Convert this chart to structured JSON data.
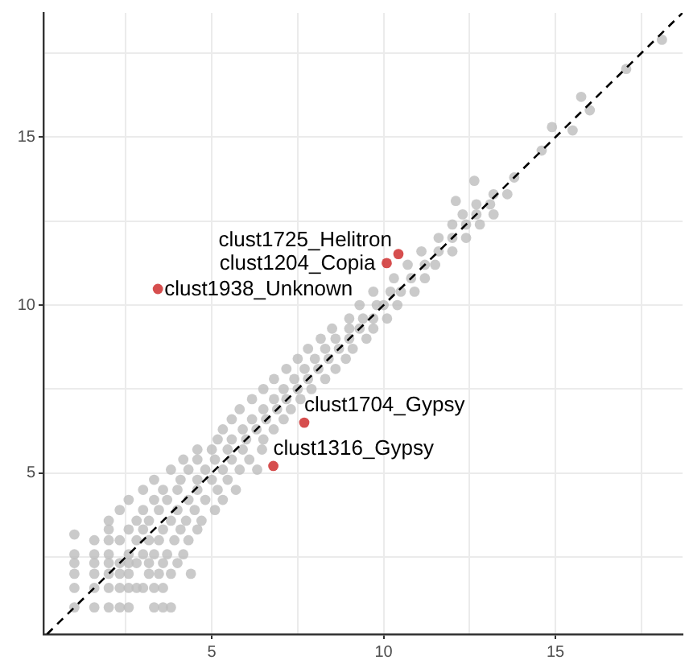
{
  "chart_data": {
    "type": "scatter",
    "xlim": [
      0.1,
      18.7
    ],
    "ylim": [
      0.2,
      18.7
    ],
    "xticks": [
      {
        "value": 2.5,
        "label": null
      },
      5,
      {
        "value": 7.5,
        "label": null
      },
      10,
      {
        "value": 12.5,
        "label": null
      },
      15,
      {
        "value": 17.5,
        "label": null
      }
    ],
    "yticks": [
      {
        "value": 2.5,
        "label": null
      },
      5,
      {
        "value": 7.5,
        "label": null
      },
      10,
      {
        "value": 12.5,
        "label": null
      },
      15,
      {
        "value": 17.5,
        "label": null
      }
    ],
    "grid": true,
    "legend": false,
    "marker": "circle",
    "series": [
      {
        "color": "#bdbdbd",
        "x": [
          1,
          1.58,
          2,
          2.32,
          2.58,
          3.32,
          3.58,
          3.81,
          1,
          1.58,
          2,
          2.32,
          2.58,
          2.81,
          3,
          3.32,
          3.58,
          1,
          1.58,
          2,
          2.32,
          2.58,
          3.17,
          3.46,
          3.81,
          4.39,
          1,
          1.58,
          2,
          2.32,
          2.58,
          2.81,
          3.17,
          3.58,
          4,
          1,
          1.58,
          2,
          2.58,
          3,
          3.32,
          3.7,
          4.17,
          1.58,
          2,
          2.32,
          2.81,
          3.17,
          3.46,
          3.91,
          4.32,
          1,
          2,
          2.58,
          3,
          3.58,
          4.09,
          4.58,
          2,
          2.81,
          3.17,
          3.81,
          4.25,
          4.7,
          2.32,
          3,
          3.46,
          4,
          4.5,
          5.09,
          2.58,
          3.32,
          3.7,
          4.32,
          4.81,
          5.32,
          3,
          3.58,
          4,
          4.58,
          5.17,
          5.7,
          3.32,
          4.09,
          4.58,
          5,
          5.46,
          3.81,
          4.32,
          4.81,
          5.32,
          5.81,
          6.32,
          4.17,
          4.58,
          5.09,
          5.58,
          6.09,
          4.58,
          5,
          5.46,
          5.9,
          6.46,
          5.17,
          5.58,
          6,
          6.5,
          5.32,
          5.9,
          6.3,
          6.8,
          5.58,
          6.17,
          6.58,
          7.09,
          5.81,
          6.5,
          6.9,
          7.3,
          6.17,
          6.81,
          7.17,
          7.58,
          6.5,
          7.09,
          7.5,
          7.9,
          6.81,
          7.4,
          7.8,
          8.3,
          7.17,
          7.7,
          8.1,
          8.6,
          7.5,
          8,
          8.4,
          8.9,
          7.8,
          8.3,
          8.7,
          9.1,
          8.17,
          8.6,
          9,
          9.5,
          8.5,
          9,
          9.3,
          9.7,
          9,
          9.4,
          9.7,
          10.1,
          9.3,
          9.8,
          10,
          10.4,
          9.7,
          10.2,
          10.5,
          10.9,
          10.3,
          10.8,
          11.2,
          10.7,
          11.2,
          11.5,
          11.1,
          11.6,
          12,
          11.6,
          12,
          12.4,
          12,
          12.4,
          12.8,
          12.3,
          12.7,
          13.2,
          12.7,
          13.1,
          13.2,
          13.6,
          12.64,
          12.1,
          13.8,
          14.6,
          14.9,
          15.5,
          15.75,
          16,
          17.06,
          18.1
        ],
        "values": [
          1,
          1,
          1,
          1,
          1,
          1,
          1,
          1,
          1.58,
          1.58,
          1.58,
          1.58,
          1.58,
          1.58,
          1.58,
          1.58,
          1.58,
          2,
          2,
          2,
          2,
          2,
          2,
          2,
          2,
          2,
          2.32,
          2.32,
          2.32,
          2.32,
          2.32,
          2.32,
          2.32,
          2.32,
          2.32,
          2.58,
          2.58,
          2.58,
          2.58,
          2.58,
          2.58,
          2.58,
          2.58,
          3,
          3,
          3,
          3,
          3,
          3,
          3,
          3,
          3.17,
          3.32,
          3.32,
          3.32,
          3.32,
          3.32,
          3.32,
          3.58,
          3.58,
          3.58,
          3.58,
          3.58,
          3.58,
          3.9,
          3.9,
          3.9,
          3.9,
          3.9,
          3.9,
          4.2,
          4.2,
          4.2,
          4.2,
          4.2,
          4.2,
          4.5,
          4.5,
          4.5,
          4.5,
          4.5,
          4.5,
          4.8,
          4.8,
          4.8,
          4.8,
          4.8,
          5.1,
          5.1,
          5.1,
          5.1,
          5.1,
          5.1,
          5.4,
          5.4,
          5.4,
          5.4,
          5.4,
          5.7,
          5.7,
          5.7,
          5.7,
          5.7,
          6,
          6,
          6,
          6,
          6.3,
          6.3,
          6.3,
          6.3,
          6.6,
          6.6,
          6.6,
          6.6,
          6.9,
          6.9,
          6.9,
          6.9,
          7.2,
          7.2,
          7.2,
          7.2,
          7.5,
          7.5,
          7.5,
          7.5,
          7.8,
          7.8,
          7.8,
          7.8,
          8.1,
          8.1,
          8.1,
          8.1,
          8.4,
          8.4,
          8.4,
          8.4,
          8.7,
          8.7,
          8.7,
          8.7,
          9,
          9,
          9,
          9,
          9.3,
          9.3,
          9.3,
          9.3,
          9.6,
          9.6,
          9.6,
          9.6,
          10,
          10,
          10,
          10,
          10.4,
          10.4,
          10.4,
          10.4,
          10.8,
          10.8,
          10.8,
          11.2,
          11.2,
          11.2,
          11.6,
          11.6,
          11.6,
          12,
          12,
          12,
          12.4,
          12.4,
          12.4,
          12.7,
          12.7,
          12.7,
          13,
          13,
          13.3,
          13.3,
          13.7,
          13.1,
          13.8,
          14.6,
          15.3,
          15.2,
          16.2,
          15.8,
          17.03,
          17.9
        ]
      },
      {
        "color": "#cc2222",
        "x": [
          10.43,
          10.09,
          3.43,
          7.69,
          6.79
        ],
        "values": [
          11.52,
          11.25,
          10.48,
          6.5,
          5.21
        ]
      },
      {
        "type": "line",
        "color": "#000000",
        "marker": "none",
        "line_style": "dashed",
        "x": [
          0.2,
          18.7
        ],
        "values": [
          0.2,
          18.7
        ]
      }
    ],
    "annotations": [
      {
        "text": "clust1725_Helitron",
        "x": 10.43,
        "y": 11.52
      },
      {
        "text": "clust1204_Copia",
        "x": 10.09,
        "y": 11.25
      },
      {
        "text": "clust1938_Unknown",
        "x": 3.43,
        "y": 10.48
      },
      {
        "text": "clust1704_Gypsy",
        "x": 7.69,
        "y": 6.5
      },
      {
        "text": "clust1316_Gypsy",
        "x": 6.79,
        "y": 5.21
      }
    ]
  }
}
